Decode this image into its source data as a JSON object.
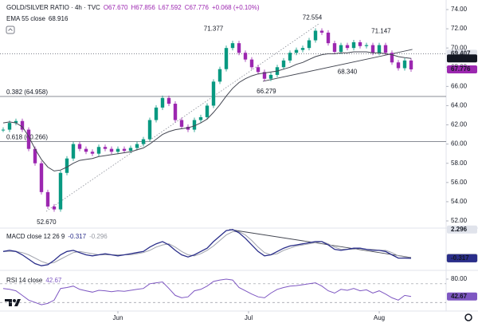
{
  "chart_data": {
    "type": "candlestick",
    "title": "GOLD/SILVER RATIO · 4h · TVC",
    "ohlc": [
      "O67.670",
      "H67.856",
      "L67.592",
      "C67.776",
      "+0.068 (+0.10%)"
    ],
    "ema_label": "EMA 55 close",
    "up_color": "#089981",
    "down_color": "#9c27b0",
    "x": [
      0,
      1,
      2,
      3,
      4,
      5,
      6,
      7,
      8,
      9,
      10,
      11,
      12,
      13,
      14,
      15,
      16,
      17,
      18,
      19,
      20,
      21,
      22,
      23,
      24,
      25,
      26,
      27,
      28,
      29,
      30,
      31,
      32,
      33,
      34,
      35,
      36,
      37,
      38,
      39,
      40,
      41,
      42,
      43,
      44,
      45,
      46,
      47,
      48,
      49,
      50,
      51,
      52,
      53,
      54,
      55,
      56,
      57,
      58,
      59,
      60,
      61,
      62,
      63,
      64
    ],
    "xlim": [
      -0.5,
      69.5
    ],
    "xticks": [
      {
        "value": 18,
        "label": "Jun"
      },
      {
        "value": 38.5,
        "label": "Jul"
      },
      {
        "value": 59,
        "label": "Aug"
      }
    ],
    "ylim": [
      52,
      74
    ],
    "yticks": [
      {
        "value": 52,
        "label": "52.00"
      },
      {
        "value": 54,
        "label": "54.00"
      },
      {
        "value": 56,
        "label": "56.00"
      },
      {
        "value": 58,
        "label": "58.00"
      },
      {
        "value": 60,
        "label": "60.00"
      },
      {
        "value": 62,
        "label": "62.00"
      },
      {
        "value": 64,
        "label": "64.00"
      },
      {
        "value": 66,
        "label": "66.00"
      },
      {
        "value": 68,
        "label": "68.00"
      },
      {
        "value": 70,
        "label": "70.00"
      },
      {
        "value": 72,
        "label": "72.00"
      },
      {
        "value": 74,
        "label": "74.00"
      }
    ],
    "series": [
      {
        "name": "GOLD/SILVER RATIO",
        "values": [
          61.5,
          62.2,
          62.4,
          61.5,
          59.5,
          58.0,
          55.0,
          53.5,
          53.2,
          57.0,
          58.5,
          60.0,
          59.5,
          59.2,
          59.0,
          59.7,
          59.5,
          59.2,
          59.5,
          59.3,
          59.6,
          60.0,
          60.5,
          62.5,
          63.8,
          64.8,
          64.2,
          62.5,
          61.8,
          61.5,
          62.5,
          62.8,
          64.0,
          66.5,
          67.8,
          70.0,
          70.5,
          69.5,
          68.8,
          68.0,
          67.5,
          66.8,
          67.2,
          68.0,
          68.7,
          69.5,
          69.8,
          70.0,
          70.8,
          71.8,
          71.6,
          70.5,
          69.6,
          70.3,
          70.0,
          70.6,
          70.2,
          70.3,
          69.5,
          70.3,
          69.5,
          68.5,
          67.9,
          68.7,
          67.776
        ]
      },
      {
        "name": "EMA 55",
        "color": "#434651",
        "values": [
          62.2,
          62.3,
          62.2,
          61.8,
          60.8,
          59.5,
          58.4,
          57.6,
          57.2,
          57.3,
          57.6,
          58.0,
          58.3,
          58.4,
          58.5,
          58.7,
          58.8,
          58.9,
          59.0,
          59.1,
          59.2,
          59.4,
          59.6,
          60.0,
          60.5,
          61.0,
          61.3,
          61.5,
          61.6,
          61.7,
          61.9,
          62.2,
          62.6,
          63.3,
          64.1,
          65.0,
          65.8,
          66.4,
          66.8,
          67.1,
          67.3,
          67.4,
          67.5,
          67.6,
          67.8,
          68.0,
          68.3,
          68.5,
          68.8,
          69.1,
          69.3,
          69.4,
          69.4,
          69.5,
          69.5,
          69.6,
          69.6,
          69.6,
          69.5,
          69.5,
          69.4,
          69.3,
          69.1,
          69.0,
          68.916
        ]
      }
    ],
    "price_labels": [
      {
        "value": 69.407,
        "color": "#e0e3eb",
        "text_color": "#131722",
        "line": true
      },
      {
        "value": 68.916,
        "color": "#131722",
        "text_color": "#ffffff",
        "line": false
      },
      {
        "value": 67.776,
        "color": "#9c27b0",
        "text_color": "#ffffff",
        "line": false
      }
    ],
    "annotations": [
      {
        "value": 72.554,
        "label": "72.554",
        "x": 48.5
      },
      {
        "value": 71.377,
        "label": "71.377",
        "x": 33
      },
      {
        "value": 71.147,
        "label": "71.147",
        "x": 59.3
      },
      {
        "value": 68.34,
        "label": "68.340",
        "x": 54
      },
      {
        "value": 66.279,
        "label": "66.279",
        "x": 41.3
      },
      {
        "value": 52.67,
        "label": "52.670",
        "x": 6.8
      }
    ],
    "fib": [
      {
        "label": "0.382 (64.958)",
        "value": 64.958
      },
      {
        "label": "0.618 (60.266)",
        "value": 60.266
      }
    ],
    "trendlines": [
      {
        "pane": "price",
        "x": [
          6.75,
          49.5
        ],
        "y": [
          53.0,
          72.5
        ],
        "dotted": true
      },
      {
        "pane": "price",
        "x": [
          40.75,
          64.2
        ],
        "y": [
          66.53,
          69.85
        ],
        "dotted": false
      },
      {
        "pane": "macd",
        "x": [
          35.5,
          64
        ],
        "y": [
          2.3,
          -0.25
        ],
        "dotted": false
      }
    ],
    "macd": {
      "label": "MACD close 12 26 9",
      "ylim": [
        -1.2,
        2.5
      ],
      "macd_color": "#2a2e8a",
      "signal_color": "#a0a3ad",
      "macd_values": [
        0.3,
        0.4,
        0.3,
        0.0,
        -0.4,
        -0.8,
        -1.0,
        -0.9,
        -0.5,
        0.0,
        0.3,
        0.4,
        0.2,
        0.0,
        -0.1,
        0.0,
        0.1,
        0.0,
        -0.1,
        0.0,
        0.1,
        0.2,
        0.3,
        0.7,
        1.0,
        1.2,
        0.9,
        0.4,
        0.0,
        -0.2,
        0.0,
        0.3,
        0.6,
        1.2,
        1.7,
        2.2,
        2.3,
        2.0,
        1.5,
        0.9,
        0.3,
        -0.1,
        0.0,
        0.3,
        0.6,
        0.8,
        0.9,
        1.0,
        1.1,
        1.2,
        1.2,
        0.9,
        0.5,
        0.4,
        0.5,
        0.6,
        0.6,
        0.5,
        0.4,
        0.4,
        0.3,
        0.0,
        -0.3,
        -0.3,
        -0.317
      ],
      "signal_values": [
        0.3,
        0.3,
        0.3,
        0.2,
        0.0,
        -0.3,
        -0.6,
        -0.8,
        -0.7,
        -0.4,
        -0.1,
        0.2,
        0.3,
        0.2,
        0.1,
        0.0,
        0.0,
        0.0,
        0.0,
        0.0,
        0.0,
        0.1,
        0.2,
        0.4,
        0.7,
        0.9,
        1.0,
        0.7,
        0.3,
        0.0,
        -0.1,
        0.1,
        0.4,
        0.8,
        1.3,
        1.8,
        2.1,
        2.1,
        1.8,
        1.3,
        0.7,
        0.2,
        0.0,
        0.1,
        0.4,
        0.6,
        0.8,
        0.9,
        1.0,
        1.1,
        1.2,
        1.0,
        0.7,
        0.5,
        0.5,
        0.5,
        0.6,
        0.5,
        0.5,
        0.4,
        0.4,
        0.2,
        -0.1,
        -0.2,
        -0.296
      ],
      "axis_labels": [
        {
          "value": 2.296,
          "color": "#e0e3eb",
          "text_color": "#131722"
        },
        {
          "value": -0.296,
          "color": "#ffffff",
          "text_color": "#131722"
        },
        {
          "value": -0.317,
          "color": "#2a2e8a",
          "text_color": "#ffffff"
        }
      ]
    },
    "rsi": {
      "label": "RSI 14 close",
      "ylim": [
        15,
        97
      ],
      "color": "#7e57c2",
      "bands": [
        70,
        30
      ],
      "values": [
        60,
        58,
        55,
        45,
        35,
        30,
        25,
        28,
        35,
        60,
        62,
        65,
        58,
        55,
        52,
        56,
        55,
        53,
        55,
        54,
        56,
        58,
        60,
        70,
        72,
        74,
        60,
        45,
        40,
        42,
        55,
        58,
        65,
        75,
        78,
        80,
        78,
        62,
        55,
        48,
        42,
        40,
        50,
        58,
        62,
        65,
        66,
        68,
        70,
        72,
        65,
        55,
        50,
        58,
        56,
        60,
        55,
        57,
        50,
        55,
        48,
        40,
        35,
        45,
        42.67
      ],
      "ticks": [
        {
          "value": 80,
          "label": "80.00"
        }
      ],
      "axis_labels": [
        {
          "value": 42.67,
          "color": "#7e57c2",
          "text_color": "#ffffff"
        }
      ]
    }
  }
}
